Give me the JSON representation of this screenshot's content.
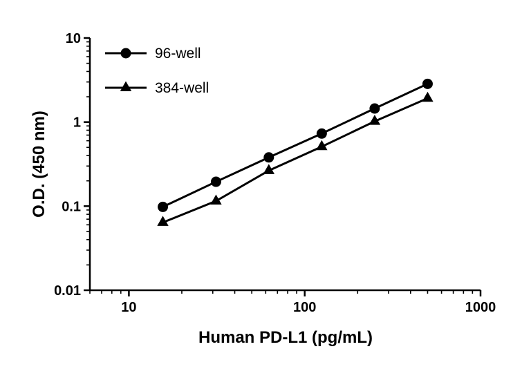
{
  "figure": {
    "background_color": "#ffffff",
    "axis_color": "#000000"
  },
  "chart_data": {
    "type": "line",
    "xlabel": "Human PD-L1 (pg/mL)",
    "ylabel": "O.D. (450 nm)",
    "x_scale": "log10",
    "y_scale": "log10",
    "xlim": [
      6,
      1000
    ],
    "ylim": [
      0.01,
      10
    ],
    "x_major_ticks": [
      10,
      100,
      1000
    ],
    "y_major_ticks": [
      0.01,
      0.1,
      1,
      10
    ],
    "grid": false,
    "legend_position": "inside-top-left",
    "series": [
      {
        "name": "96-well",
        "marker": "circle",
        "color": "#000000",
        "x": [
          15.6,
          31.3,
          62.5,
          125,
          250,
          500
        ],
        "y": [
          0.098,
          0.195,
          0.38,
          0.73,
          1.45,
          2.85
        ]
      },
      {
        "name": "384-well",
        "marker": "triangle",
        "color": "#000000",
        "x": [
          15.6,
          31.3,
          62.5,
          125,
          250,
          500
        ],
        "y": [
          0.064,
          0.115,
          0.265,
          0.51,
          1.02,
          1.92
        ]
      }
    ]
  }
}
